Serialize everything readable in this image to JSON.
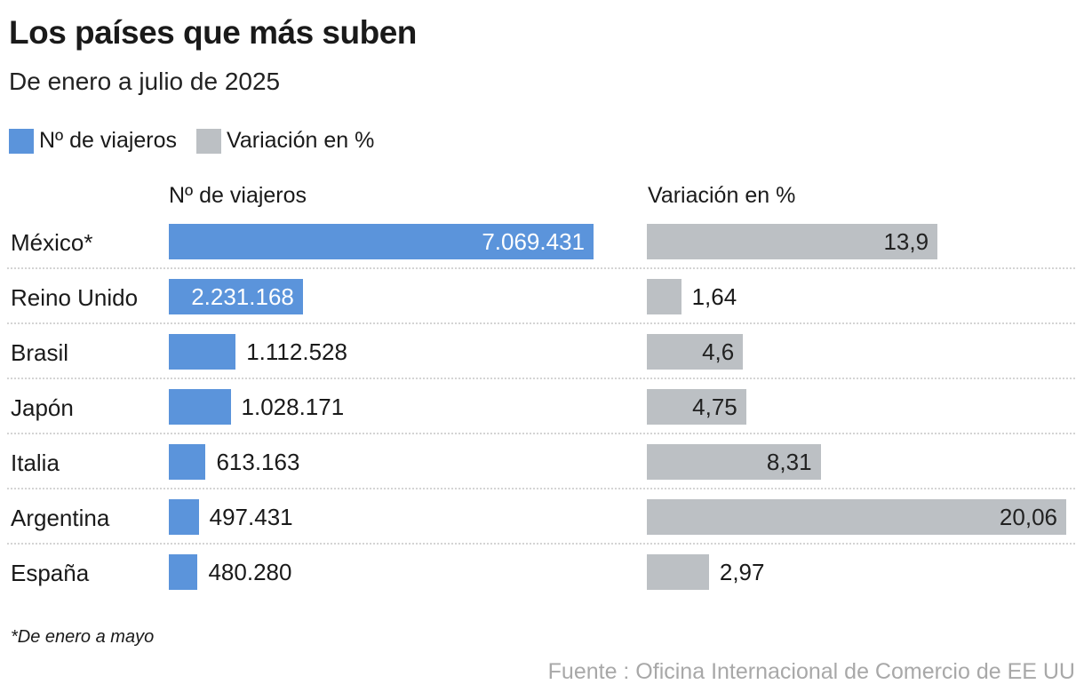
{
  "title": "Los países que más suben",
  "subtitle": "De enero a julio de 2025",
  "legend": [
    {
      "label": "Nº de viajeros",
      "color": "#5b94db"
    },
    {
      "label": "Variación en %",
      "color": "#bcc0c4"
    }
  ],
  "note": "*De enero a mayo",
  "source": "Fuente : Oficina Internacional de Comercio de EE UU",
  "chart_data": {
    "type": "bar",
    "columns": [
      "Nº de viajeros",
      "Variación en %"
    ],
    "categories": [
      "México*",
      "Reino Unido",
      "Brasil",
      "Japón",
      "Italia",
      "Argentina",
      "España"
    ],
    "series": [
      {
        "name": "Nº de viajeros",
        "color": "#5b94db",
        "values": [
          7069431,
          2231168,
          1112528,
          1028171,
          613163,
          497431,
          480280
        ],
        "labels": [
          "7.069.431",
          "2.231.168",
          "1.112.528",
          "1.028.171",
          "613.163",
          "497.431",
          "480.280"
        ]
      },
      {
        "name": "Variación en %",
        "color": "#bcc0c4",
        "values": [
          13.9,
          1.64,
          4.6,
          4.75,
          8.31,
          20.06,
          2.97
        ],
        "labels": [
          "13,9",
          "1,64",
          "4,6",
          "4,75",
          "8,31",
          "20,06",
          "2,97"
        ]
      }
    ]
  }
}
